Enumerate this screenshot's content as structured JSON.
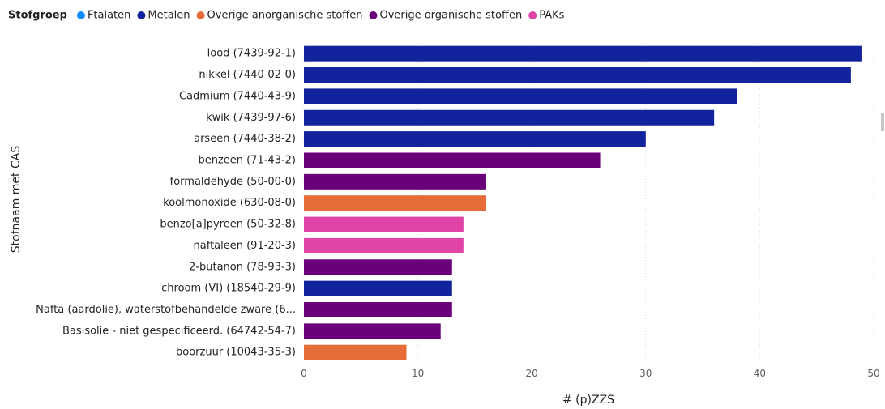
{
  "chart_data": {
    "type": "bar",
    "orientation": "horizontal",
    "legend_title": "Stofgroep",
    "series": [
      {
        "name": "Ftalaten",
        "color": "#118DFF"
      },
      {
        "name": "Metalen",
        "color": "#12239E"
      },
      {
        "name": "Overige anorganische stoffen",
        "color": "#E66C37"
      },
      {
        "name": "Overige organische stoffen",
        "color": "#6B007B"
      },
      {
        "name": "PAKs",
        "color": "#E044A7"
      }
    ],
    "categories": [
      "lood (7439-92-1)",
      "nikkel (7440-02-0)",
      "Cadmium (7440-43-9)",
      "kwik (7439-97-6)",
      "arseen (7440-38-2)",
      "benzeen (71-43-2)",
      "formaldehyde (50-00-0)",
      "koolmonoxide (630-08-0)",
      "benzo[a]pyreen (50-32-8)",
      "naftaleen (91-20-3)",
      "2-butanon (78-93-3)",
      "chroom (VI) (18540-29-9)",
      "Nafta (aardolie), waterstofbehandelde zware (6...",
      "Basisolie - niet gespecificeerd. (64742-54-7)",
      "boorzuur (10043-35-3)"
    ],
    "groups": [
      "Metalen",
      "Metalen",
      "Metalen",
      "Metalen",
      "Metalen",
      "Overige organische stoffen",
      "Overige organische stoffen",
      "Overige anorganische stoffen",
      "PAKs",
      "PAKs",
      "Overige organische stoffen",
      "Metalen",
      "Overige organische stoffen",
      "Overige organische stoffen",
      "Overige anorganische stoffen"
    ],
    "values": [
      49,
      48,
      38,
      36,
      30,
      26,
      16,
      16,
      14,
      14,
      13,
      13,
      13,
      12,
      9
    ],
    "xlim": [
      0,
      50
    ],
    "xticks": [
      0,
      10,
      20,
      30,
      40,
      50
    ],
    "x_label": "# (p)ZZS",
    "y_label": "Stofnaam met CAS",
    "grid": true
  }
}
